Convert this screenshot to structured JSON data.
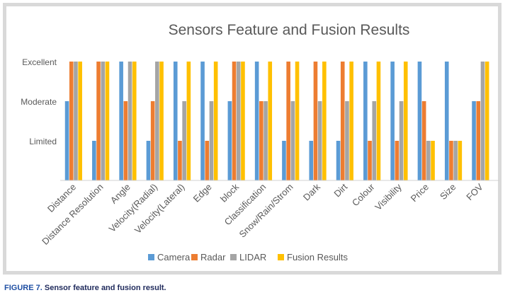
{
  "chart_data": {
    "type": "bar",
    "title": "Sensors Feature and Fusion Results",
    "xlabel": "",
    "ylabel": "",
    "y_levels": [
      "Limited",
      "Moderate",
      "Excellent"
    ],
    "ylim": [
      0,
      3
    ],
    "categories": [
      "Distance",
      "Distance Resolution",
      "Angle",
      "Velocity(Radial)",
      "Velocity(Lateral)",
      "Edge",
      "block",
      "Classification",
      "Snow/Rain/Strom",
      "Dark",
      "Dirt",
      "Colour",
      "Visibility",
      "Price",
      "Size",
      "FOV"
    ],
    "series": [
      {
        "name": "Camera",
        "color": "#5b9bd5",
        "values": [
          2,
          1,
          3,
          1,
          3,
          3,
          2,
          3,
          1,
          1,
          1,
          3,
          3,
          3,
          3,
          2
        ]
      },
      {
        "name": "Radar",
        "color": "#ed7d31",
        "values": [
          3,
          3,
          2,
          2,
          1,
          1,
          3,
          2,
          3,
          3,
          3,
          1,
          1,
          2,
          1,
          2
        ]
      },
      {
        "name": "LIDAR",
        "color": "#a5a5a5",
        "values": [
          3,
          3,
          3,
          3,
          2,
          2,
          3,
          2,
          2,
          2,
          2,
          2,
          2,
          1,
          1,
          3
        ]
      },
      {
        "name": "Fusion Results",
        "color": "#ffc000",
        "values": [
          3,
          3,
          3,
          3,
          3,
          3,
          3,
          3,
          3,
          3,
          3,
          3,
          3,
          1,
          1,
          3
        ]
      }
    ],
    "legend_position": "bottom",
    "grid": false
  },
  "caption": {
    "figure_label": "FIGURE 7.",
    "text": "Sensor feature and fusion result."
  }
}
